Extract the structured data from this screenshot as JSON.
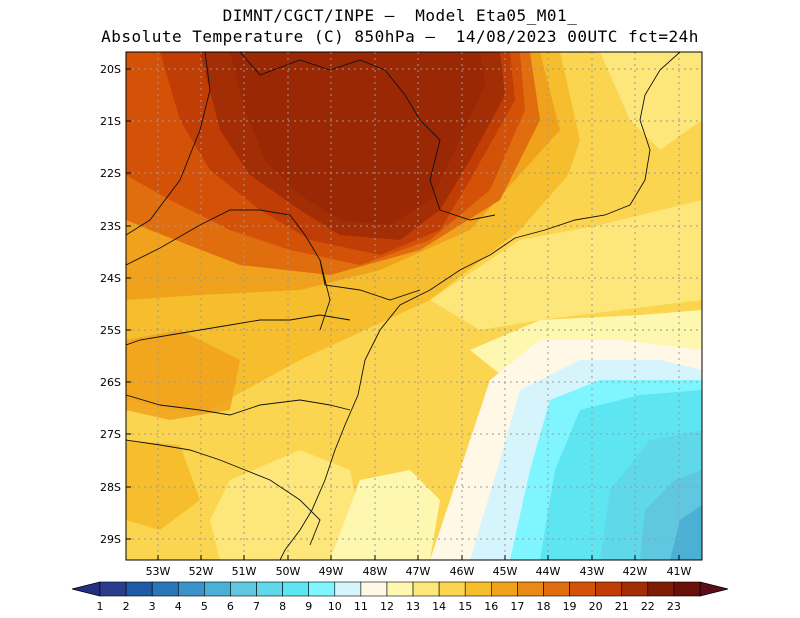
{
  "title_line1": "DIMNT/CGCT/INPE –  Model Eta05_M01_",
  "title_line2": "Absolute Temperature (C) 850hPa –  14/08/2023 00UTC fct=24h",
  "map": {
    "variable": "Absolute Temperature (C)",
    "level": "850hPa",
    "date": "14/08/2023 00UTC",
    "forecast": "fct=24h",
    "lat_labels": [
      "20S",
      "21S",
      "22S",
      "23S",
      "24S",
      "25S",
      "26S",
      "27S",
      "28S",
      "29S"
    ],
    "lon_labels": [
      "53W",
      "52W",
      "51W",
      "50W",
      "49W",
      "48W",
      "47W",
      "46W",
      "45W",
      "44W",
      "43W",
      "42W",
      "41W"
    ]
  },
  "colorbar": {
    "labels": [
      "1",
      "2",
      "3",
      "4",
      "5",
      "6",
      "7",
      "8",
      "9",
      "10",
      "11",
      "12",
      "13",
      "14",
      "15",
      "16",
      "17",
      "18",
      "19",
      "20",
      "21",
      "22",
      "23"
    ],
    "colors": [
      "#2b3c8f",
      "#1f5aa6",
      "#2a76b8",
      "#3a94c9",
      "#4bb0d6",
      "#5fc8e0",
      "#5fd9ea",
      "#5ee5f2",
      "#7ff6ff",
      "#d6f4fb",
      "#fff8e7",
      "#fef7b0",
      "#fde77a",
      "#fbd54f",
      "#f6be2c",
      "#f0a21c",
      "#ea8a16",
      "#e06d0e",
      "#d45208",
      "#c03d05",
      "#a32d04",
      "#7f1d04",
      "#6a0f0a"
    ],
    "left_arrow": "#233080",
    "right_arrow": "#5a0e1a"
  }
}
